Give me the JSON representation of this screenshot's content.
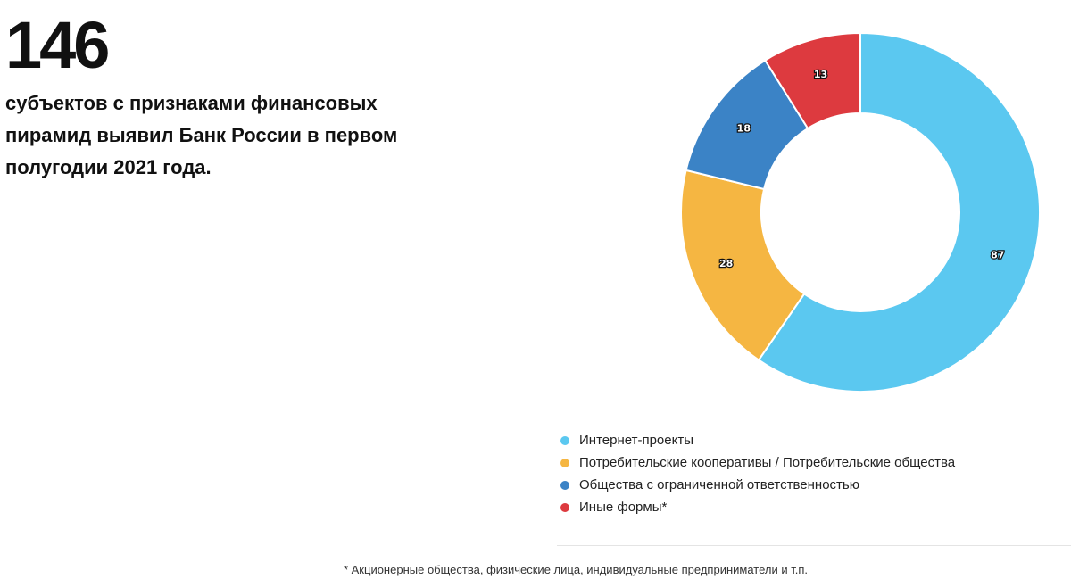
{
  "header": {
    "big_number": "146",
    "headline": "субъектов с признаками финансовых пирамид выявил Банк России в первом полугодии 2021 года."
  },
  "chart_data": {
    "type": "pie",
    "variant": "donut",
    "title": "",
    "categories": [
      "Интернет-проекты",
      "Потребительские кооперативы / Потребительские общества",
      "Общества с ограниченной ответственностью",
      "Иные формы*"
    ],
    "values": [
      87,
      28,
      18,
      13
    ],
    "value_labels": [
      "87",
      "28",
      "18",
      "13"
    ],
    "colors": [
      "#5BC8F0",
      "#F5B642",
      "#3B83C6",
      "#DD3A3F"
    ],
    "legend_position": "bottom"
  },
  "footnote": "* Акционерные общества, физические лица, индивидуальные предприниматели и т.п."
}
